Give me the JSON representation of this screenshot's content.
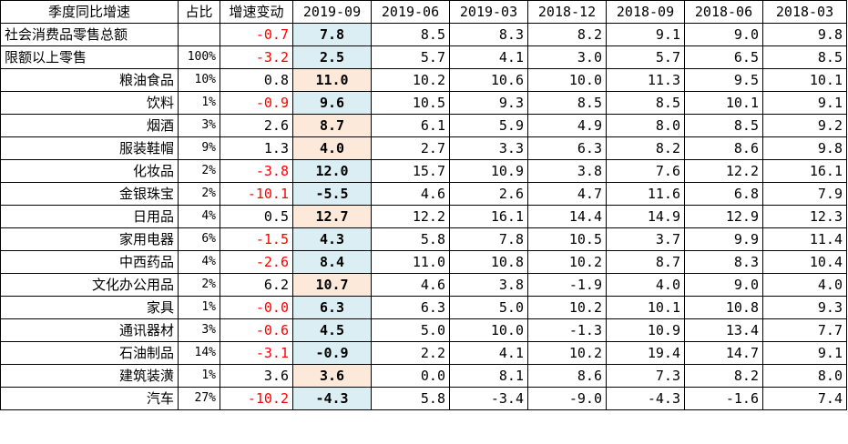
{
  "headers": [
    "季度同比增速",
    "占比",
    "增速变动",
    "2019-09",
    "2019-06",
    "2019-03",
    "2018-12",
    "2018-09",
    "2018-06",
    "2018-03"
  ],
  "colors": {
    "highlight_blue": "#dbeef4",
    "highlight_orange": "#fde9d9",
    "negative_change": "#ff0000"
  },
  "rows": [
    {
      "name": "社会消费品零售总额",
      "share": "",
      "change": "-0.7",
      "values": [
        "7.8",
        "8.5",
        "8.3",
        "8.2",
        "9.1",
        "9.0",
        "9.8"
      ],
      "highlight": "blue",
      "align": "left"
    },
    {
      "name": "限额以上零售",
      "share": "100%",
      "change": "-3.2",
      "values": [
        "2.5",
        "5.7",
        "4.1",
        "3.0",
        "5.7",
        "6.5",
        "8.5"
      ],
      "highlight": "blue",
      "align": "left"
    },
    {
      "name": "粮油食品",
      "share": "10%",
      "change": "0.8",
      "values": [
        "11.0",
        "10.2",
        "10.6",
        "10.0",
        "11.3",
        "9.5",
        "10.1"
      ],
      "highlight": "orange",
      "align": "right"
    },
    {
      "name": "饮料",
      "share": "1%",
      "change": "-0.9",
      "values": [
        "9.6",
        "10.5",
        "9.3",
        "8.5",
        "8.5",
        "10.1",
        "9.1"
      ],
      "highlight": "blue",
      "align": "right"
    },
    {
      "name": "烟酒",
      "share": "3%",
      "change": "2.6",
      "values": [
        "8.7",
        "6.1",
        "5.9",
        "4.9",
        "8.0",
        "8.5",
        "9.2"
      ],
      "highlight": "orange",
      "align": "right"
    },
    {
      "name": "服装鞋帽",
      "share": "9%",
      "change": "1.3",
      "values": [
        "4.0",
        "2.7",
        "3.3",
        "6.3",
        "8.2",
        "8.6",
        "9.8"
      ],
      "highlight": "orange",
      "align": "right"
    },
    {
      "name": "化妆品",
      "share": "2%",
      "change": "-3.8",
      "values": [
        "12.0",
        "15.7",
        "10.9",
        "3.8",
        "7.6",
        "12.2",
        "16.1"
      ],
      "highlight": "blue",
      "align": "right"
    },
    {
      "name": "金银珠宝",
      "share": "2%",
      "change": "-10.1",
      "values": [
        "-5.5",
        "4.6",
        "2.6",
        "4.7",
        "11.6",
        "6.8",
        "7.9"
      ],
      "highlight": "blue",
      "align": "right"
    },
    {
      "name": "日用品",
      "share": "4%",
      "change": "0.5",
      "values": [
        "12.7",
        "12.2",
        "16.1",
        "14.4",
        "14.9",
        "12.9",
        "12.3"
      ],
      "highlight": "orange",
      "align": "right"
    },
    {
      "name": "家用电器",
      "share": "6%",
      "change": "-1.5",
      "values": [
        "4.3",
        "5.8",
        "7.8",
        "10.5",
        "3.7",
        "9.9",
        "11.4"
      ],
      "highlight": "blue",
      "align": "right"
    },
    {
      "name": "中西药品",
      "share": "4%",
      "change": "-2.6",
      "values": [
        "8.4",
        "11.0",
        "10.8",
        "10.2",
        "8.7",
        "8.3",
        "10.4"
      ],
      "highlight": "blue",
      "align": "right"
    },
    {
      "name": "文化办公用品",
      "share": "2%",
      "change": "6.2",
      "values": [
        "10.7",
        "4.6",
        "3.8",
        "-1.9",
        "4.0",
        "9.0",
        "4.0"
      ],
      "highlight": "orange",
      "align": "right"
    },
    {
      "name": "家具",
      "share": "1%",
      "change": "-0.0",
      "values": [
        "6.3",
        "6.3",
        "5.0",
        "10.2",
        "10.1",
        "10.8",
        "9.3"
      ],
      "highlight": "blue",
      "align": "right"
    },
    {
      "name": "通讯器材",
      "share": "3%",
      "change": "-0.6",
      "values": [
        "4.5",
        "5.0",
        "10.0",
        "-1.3",
        "10.9",
        "13.4",
        "7.7"
      ],
      "highlight": "blue",
      "align": "right"
    },
    {
      "name": "石油制品",
      "share": "14%",
      "change": "-3.1",
      "values": [
        "-0.9",
        "2.2",
        "4.1",
        "10.2",
        "19.4",
        "14.7",
        "9.1"
      ],
      "highlight": "blue",
      "align": "right"
    },
    {
      "name": "建筑装潢",
      "share": "1%",
      "change": "3.6",
      "values": [
        "3.6",
        "0.0",
        "8.1",
        "8.6",
        "7.3",
        "8.2",
        "8.0"
      ],
      "highlight": "orange",
      "align": "right"
    },
    {
      "name": "汽车",
      "share": "27%",
      "change": "-10.2",
      "values": [
        "-4.3",
        "5.8",
        "-3.4",
        "-9.0",
        "-4.3",
        "-1.6",
        "7.4"
      ],
      "highlight": "blue",
      "align": "right"
    }
  ]
}
